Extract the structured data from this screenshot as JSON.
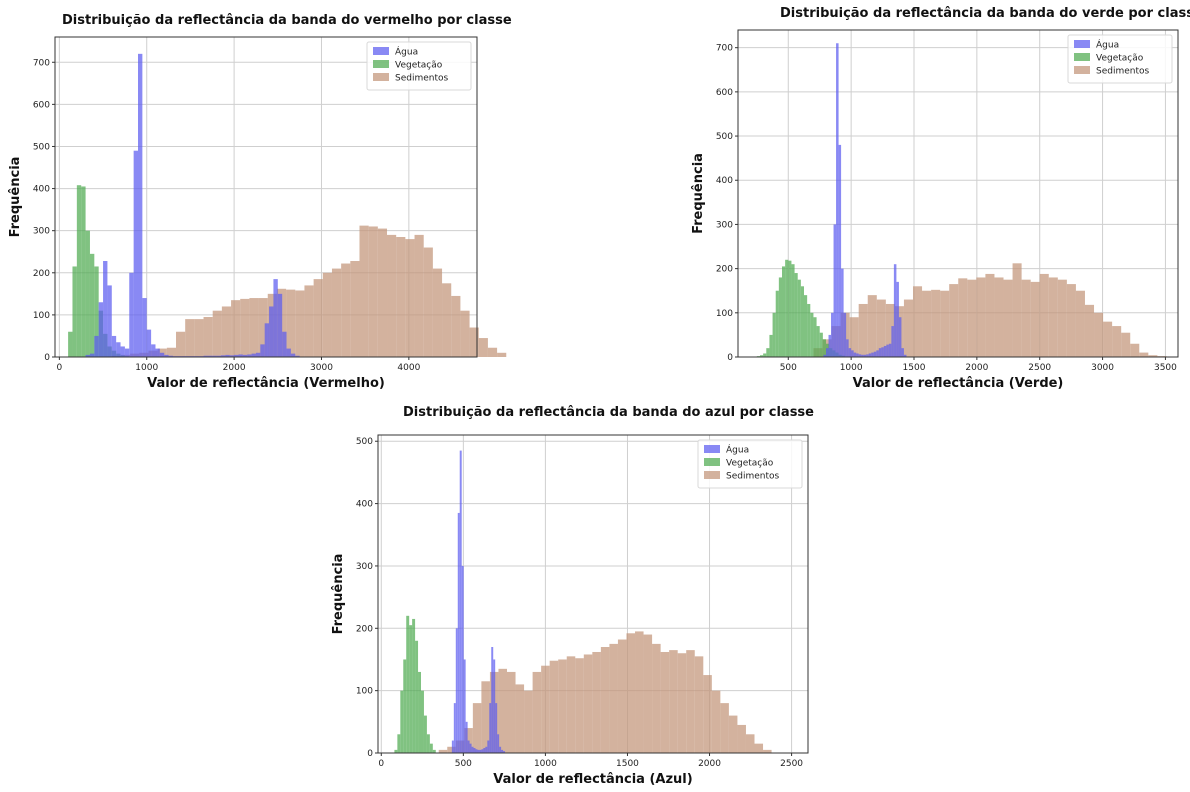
{
  "colors": {
    "water": "#5b5cf0",
    "vegetation": "#4faa50",
    "sediment": "#c29478",
    "grid": "#cfcfcf"
  },
  "chart_data": [
    {
      "type": "bar",
      "title": "Distribuição da reflectância da banda do vermelho por classe",
      "xlabel": "Valor de reflectância (Vermelho)",
      "ylabel": "Frequência",
      "xlim": [
        -50,
        4780
      ],
      "ylim": [
        0,
        760
      ],
      "xticks": [
        0,
        1000,
        2000,
        3000,
        4000
      ],
      "yticks": [
        0,
        100,
        200,
        300,
        400,
        500,
        600,
        700
      ],
      "legend": "top-right",
      "grid": true,
      "series": [
        {
          "name": "Sedimentos",
          "color": "#c29478",
          "binStart": 600,
          "binWidth": 105,
          "values": [
            3,
            5,
            8,
            10,
            15,
            20,
            22,
            60,
            90,
            90,
            95,
            110,
            120,
            135,
            138,
            140,
            140,
            150,
            162,
            160,
            158,
            170,
            185,
            200,
            210,
            222,
            228,
            312,
            310,
            305,
            290,
            285,
            280,
            290,
            260,
            210,
            175,
            145,
            110,
            70,
            45,
            22,
            10
          ]
        },
        {
          "name": "Vegetação",
          "color": "#4faa50",
          "binStart": 100,
          "binWidth": 50,
          "values": [
            60,
            215,
            408,
            405,
            300,
            245,
            215,
            110,
            55,
            25,
            15,
            8,
            4,
            2
          ]
        },
        {
          "name": "Água",
          "color": "#5b5cf0",
          "binStart": 250,
          "binWidth": 50,
          "values": [
            0,
            5,
            8,
            50,
            130,
            228,
            170,
            50,
            35,
            25,
            20,
            200,
            490,
            720,
            140,
            65,
            30,
            20,
            10,
            5,
            3,
            2,
            2,
            2,
            2,
            2,
            2,
            2,
            3,
            3,
            3,
            3,
            4,
            5,
            4,
            5,
            6,
            5,
            6,
            8,
            10,
            30,
            80,
            120,
            185,
            150,
            60,
            20,
            8,
            3
          ]
        }
      ]
    },
    {
      "type": "bar",
      "title": "Distribuição da reflectância da banda do verde por classe",
      "xlabel": "Valor de reflectância (Verde)",
      "ylabel": "Frequência",
      "xlim": [
        100,
        3600
      ],
      "ylim": [
        0,
        740
      ],
      "xticks": [
        500,
        1000,
        1500,
        2000,
        2500,
        3000,
        3500
      ],
      "yticks": [
        0,
        100,
        200,
        300,
        400,
        500,
        600,
        700
      ],
      "legend": "top-right",
      "grid": true,
      "series": [
        {
          "name": "Sedimentos",
          "color": "#c29478",
          "binStart": 700,
          "binWidth": 72,
          "values": [
            20,
            40,
            70,
            100,
            90,
            120,
            140,
            130,
            120,
            115,
            130,
            160,
            150,
            152,
            150,
            165,
            178,
            175,
            180,
            188,
            180,
            175,
            212,
            175,
            170,
            188,
            180,
            175,
            165,
            150,
            118,
            100,
            80,
            70,
            55,
            30,
            10,
            4,
            2
          ]
        },
        {
          "name": "Vegetação",
          "color": "#4faa50",
          "binStart": 250,
          "binWidth": 25,
          "values": [
            2,
            4,
            8,
            20,
            50,
            100,
            150,
            180,
            205,
            220,
            218,
            210,
            190,
            175,
            160,
            140,
            120,
            100,
            90,
            70,
            55,
            40,
            30,
            20,
            15,
            10,
            5,
            3
          ]
        },
        {
          "name": "Água",
          "color": "#5b5cf0",
          "binStart": 780,
          "binWidth": 20,
          "values": [
            5,
            20,
            50,
            100,
            300,
            710,
            480,
            200,
            100,
            40,
            20,
            15,
            10,
            8,
            6,
            5,
            5,
            6,
            8,
            10,
            12,
            15,
            20,
            22,
            25,
            28,
            30,
            70,
            210,
            170,
            90,
            20,
            5
          ]
        }
      ]
    },
    {
      "type": "bar",
      "title": "Distribuição da reflectância da banda do azul por classe",
      "xlabel": "Valor de reflectância (Azul)",
      "ylabel": "Frequência",
      "xlim": [
        -20,
        2600
      ],
      "ylim": [
        0,
        510
      ],
      "xticks": [
        0,
        500,
        1000,
        1500,
        2000,
        2500
      ],
      "yticks": [
        0,
        100,
        200,
        300,
        400,
        500
      ],
      "legend": "top-right",
      "grid": true,
      "series": [
        {
          "name": "Sedimentos",
          "color": "#c29478",
          "binStart": 350,
          "binWidth": 52,
          "values": [
            5,
            10,
            20,
            40,
            80,
            115,
            130,
            135,
            130,
            110,
            100,
            130,
            140,
            148,
            150,
            155,
            152,
            158,
            162,
            170,
            175,
            182,
            192,
            195,
            190,
            175,
            162,
            165,
            160,
            165,
            155,
            125,
            100,
            80,
            60,
            45,
            30,
            15,
            5
          ]
        },
        {
          "name": "Vegetação",
          "color": "#4faa50",
          "binStart": 80,
          "binWidth": 18,
          "values": [
            5,
            30,
            100,
            150,
            220,
            205,
            215,
            180,
            130,
            100,
            60,
            30,
            15,
            5
          ]
        },
        {
          "name": "Água",
          "color": "#5b5cf0",
          "binStart": 430,
          "binWidth": 12,
          "values": [
            20,
            80,
            200,
            385,
            485,
            300,
            150,
            50,
            20,
            15,
            10,
            8,
            6,
            5,
            5,
            6,
            8,
            10,
            20,
            80,
            170,
            150,
            80,
            30,
            10,
            5,
            3
          ]
        }
      ]
    }
  ]
}
